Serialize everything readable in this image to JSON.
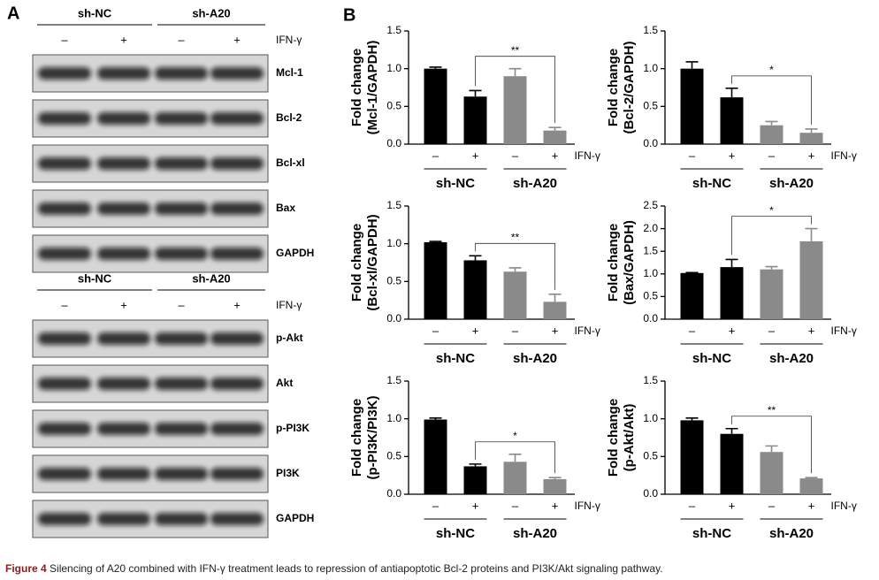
{
  "panel_a": {
    "label": "A",
    "blots": [
      {
        "groups": [
          "sh-NC",
          "sh-A20"
        ],
        "treatment_label": "IFN-γ",
        "lanes": [
          "–",
          "+",
          "–",
          "+"
        ],
        "rows": [
          "Mcl-1",
          "Bcl-2",
          "Bcl-xl",
          "Bax",
          "GAPDH"
        ]
      },
      {
        "groups": [
          "sh-NC",
          "sh-A20"
        ],
        "treatment_label": "IFN-γ",
        "lanes": [
          "–",
          "+",
          "–",
          "+"
        ],
        "rows": [
          "p-Akt",
          "Akt",
          "p-PI3K",
          "PI3K",
          "GAPDH"
        ]
      }
    ]
  },
  "panel_b_label": "B",
  "chart_data": [
    {
      "type": "bar",
      "ylabel": [
        "Fold change",
        "(Mcl-1/GAPDH)"
      ],
      "categories": [
        "–",
        "+",
        "–",
        "+"
      ],
      "groups": [
        "sh-NC",
        "sh-A20"
      ],
      "treatment_label": "IFN-γ",
      "values": [
        1.0,
        0.63,
        0.9,
        0.18
      ],
      "errors": [
        0.02,
        0.08,
        0.1,
        0.04
      ],
      "colors": [
        "#000000",
        "#000000",
        "#8a8a8a",
        "#8a8a8a"
      ],
      "ylim": [
        0,
        1.5
      ],
      "yticks": [
        {
          "value": 0,
          "label": "0.0"
        },
        0.5,
        {
          "value": 1,
          "label": "1.0"
        },
        1.5
      ],
      "significance": {
        "label": "**",
        "from": 1,
        "to": 3
      }
    },
    {
      "type": "bar",
      "ylabel": [
        "Fold change",
        "(Bcl-2/GAPDH)"
      ],
      "categories": [
        "–",
        "+",
        "–",
        "+"
      ],
      "groups": [
        "sh-NC",
        "sh-A20"
      ],
      "treatment_label": "IFN-γ",
      "values": [
        1.0,
        0.62,
        0.25,
        0.15
      ],
      "errors": [
        0.09,
        0.12,
        0.05,
        0.05
      ],
      "colors": [
        "#000000",
        "#000000",
        "#8a8a8a",
        "#8a8a8a"
      ],
      "ylim": [
        0,
        1.5
      ],
      "yticks": [
        {
          "value": 0,
          "label": "0.0"
        },
        0.5,
        {
          "value": 1,
          "label": "1.0"
        },
        1.5
      ],
      "significance": {
        "label": "*",
        "from": 1,
        "to": 3
      }
    },
    {
      "type": "bar",
      "ylabel": [
        "Fold change",
        "(Bcl-xl/GAPDH)"
      ],
      "categories": [
        "–",
        "+",
        "–",
        "+"
      ],
      "groups": [
        "sh-NC",
        "sh-A20"
      ],
      "treatment_label": "IFN-γ",
      "values": [
        1.02,
        0.78,
        0.63,
        0.23
      ],
      "errors": [
        0.01,
        0.06,
        0.05,
        0.1
      ],
      "colors": [
        "#000000",
        "#000000",
        "#8a8a8a",
        "#8a8a8a"
      ],
      "ylim": [
        0,
        1.5
      ],
      "yticks": [
        {
          "value": 0,
          "label": "0.0"
        },
        0.5,
        {
          "value": 1,
          "label": "1.0"
        },
        1.5
      ],
      "significance": {
        "label": "**",
        "from": 1,
        "to": 3
      }
    },
    {
      "type": "bar",
      "ylabel": [
        "Fold change",
        "(Bax/GAPDH)"
      ],
      "categories": [
        "–",
        "+",
        "–",
        "+"
      ],
      "groups": [
        "sh-NC",
        "sh-A20"
      ],
      "treatment_label": "IFN-γ",
      "values": [
        1.02,
        1.15,
        1.1,
        1.72
      ],
      "errors": [
        0.01,
        0.17,
        0.06,
        0.28
      ],
      "colors": [
        "#000000",
        "#000000",
        "#8a8a8a",
        "#8a8a8a"
      ],
      "ylim": [
        0,
        2.5
      ],
      "yticks": [
        {
          "value": 0,
          "label": "0.0"
        },
        0.5,
        {
          "value": 1,
          "label": "1.0"
        },
        1.5,
        {
          "value": 2,
          "label": "2.0"
        },
        2.5
      ],
      "significance": {
        "label": "*",
        "from": 1,
        "to": 3
      }
    },
    {
      "type": "bar",
      "ylabel": [
        "Fold change",
        "(p-PI3K/PI3K)"
      ],
      "categories": [
        "–",
        "+",
        "–",
        "+"
      ],
      "groups": [
        "sh-NC",
        "sh-A20"
      ],
      "treatment_label": "IFN-γ",
      "values": [
        0.99,
        0.37,
        0.43,
        0.2
      ],
      "errors": [
        0.02,
        0.03,
        0.1,
        0.02
      ],
      "colors": [
        "#000000",
        "#000000",
        "#8a8a8a",
        "#8a8a8a"
      ],
      "ylim": [
        0,
        1.5
      ],
      "yticks": [
        {
          "value": 0,
          "label": "0.0"
        },
        0.5,
        {
          "value": 1,
          "label": "1.0"
        },
        1.5
      ],
      "significance": {
        "label": "*",
        "from": 1,
        "to": 3
      }
    },
    {
      "type": "bar",
      "ylabel": [
        "Fold change",
        "(p-Akt/Akt)"
      ],
      "categories": [
        "–",
        "+",
        "–",
        "+"
      ],
      "groups": [
        "sh-NC",
        "sh-A20"
      ],
      "treatment_label": "IFN-γ",
      "values": [
        0.98,
        0.8,
        0.56,
        0.21
      ],
      "errors": [
        0.03,
        0.07,
        0.08,
        0.01
      ],
      "colors": [
        "#000000",
        "#000000",
        "#8a8a8a",
        "#8a8a8a"
      ],
      "ylim": [
        0,
        1.5
      ],
      "yticks": [
        {
          "value": 0,
          "label": "0.0"
        },
        0.5,
        {
          "value": 1,
          "label": "1.0"
        },
        1.5
      ],
      "significance": {
        "label": "**",
        "from": 1,
        "to": 3
      }
    }
  ],
  "caption": {
    "figure": "Figure 4",
    "text": "Silencing of A20 combined with IFN-γ treatment leads to repression of antiapoptotic Bcl-2 proteins and PI3K/Akt signaling pathway."
  }
}
